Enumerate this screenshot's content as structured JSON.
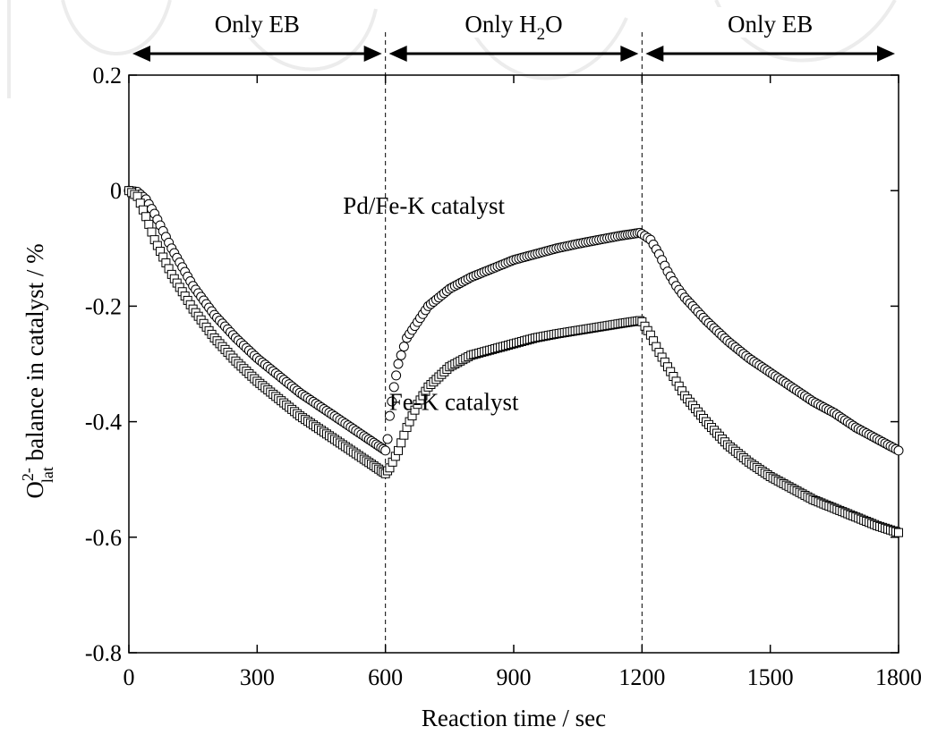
{
  "chart_data": {
    "type": "scatter",
    "title": "",
    "xlabel": "Reaction time / sec",
    "ylabel": {
      "main": "O",
      "sup": "2-",
      "sub": "lat",
      "rest": " balance in catalyst / %"
    },
    "xlim": [
      0,
      1800
    ],
    "ylim": [
      -0.8,
      0.2
    ],
    "x_ticks": [
      "0",
      "300",
      "600",
      "900",
      "1200",
      "1500",
      "1800"
    ],
    "y_ticks": [
      "0.2",
      "0",
      "-0.2",
      "-0.4",
      "-0.6",
      "-0.8"
    ],
    "x_tick_values": [
      0,
      300,
      600,
      900,
      1200,
      1500,
      1800
    ],
    "y_tick_values": [
      0.2,
      0,
      -0.2,
      -0.4,
      -0.6,
      -0.8
    ],
    "grid": false,
    "legend": "none",
    "phase_boundaries": [
      600,
      1200
    ],
    "phases": [
      {
        "label": "Only EB",
        "start": 0,
        "end": 600
      },
      {
        "label_main": "Only H",
        "label_sub": "2",
        "label_tail": "O",
        "start": 600,
        "end": 1200
      },
      {
        "label": "Only EB",
        "start": 1200,
        "end": 1800
      }
    ],
    "series": [
      {
        "name": "Pd/Fe-K catalyst",
        "marker": "circle",
        "label_at": [
          690,
          -0.04
        ],
        "points": [
          [
            0,
            0.0
          ],
          [
            20,
            -0.002
          ],
          [
            40,
            -0.015
          ],
          [
            60,
            -0.04
          ],
          [
            80,
            -0.07
          ],
          [
            100,
            -0.1
          ],
          [
            150,
            -0.165
          ],
          [
            200,
            -0.215
          ],
          [
            250,
            -0.255
          ],
          [
            300,
            -0.29
          ],
          [
            350,
            -0.32
          ],
          [
            400,
            -0.35
          ],
          [
            450,
            -0.375
          ],
          [
            500,
            -0.4
          ],
          [
            550,
            -0.425
          ],
          [
            590,
            -0.445
          ],
          [
            600,
            -0.45
          ],
          [
            605,
            -0.43
          ],
          [
            610,
            -0.39
          ],
          [
            620,
            -0.34
          ],
          [
            630,
            -0.3
          ],
          [
            650,
            -0.255
          ],
          [
            700,
            -0.2
          ],
          [
            750,
            -0.17
          ],
          [
            800,
            -0.15
          ],
          [
            850,
            -0.135
          ],
          [
            900,
            -0.12
          ],
          [
            950,
            -0.11
          ],
          [
            1000,
            -0.1
          ],
          [
            1050,
            -0.092
          ],
          [
            1100,
            -0.085
          ],
          [
            1150,
            -0.078
          ],
          [
            1195,
            -0.073
          ],
          [
            1200,
            -0.075
          ],
          [
            1220,
            -0.085
          ],
          [
            1240,
            -0.11
          ],
          [
            1260,
            -0.14
          ],
          [
            1280,
            -0.165
          ],
          [
            1300,
            -0.185
          ],
          [
            1350,
            -0.225
          ],
          [
            1400,
            -0.26
          ],
          [
            1450,
            -0.29
          ],
          [
            1500,
            -0.315
          ],
          [
            1550,
            -0.34
          ],
          [
            1600,
            -0.365
          ],
          [
            1650,
            -0.385
          ],
          [
            1700,
            -0.41
          ],
          [
            1750,
            -0.43
          ],
          [
            1800,
            -0.45
          ]
        ]
      },
      {
        "name": "Fe-K catalyst",
        "marker": "square",
        "label_at": [
          760,
          -0.38
        ],
        "points": [
          [
            0,
            0.0
          ],
          [
            20,
            -0.01
          ],
          [
            40,
            -0.045
          ],
          [
            60,
            -0.085
          ],
          [
            80,
            -0.115
          ],
          [
            100,
            -0.145
          ],
          [
            150,
            -0.205
          ],
          [
            200,
            -0.255
          ],
          [
            250,
            -0.295
          ],
          [
            300,
            -0.33
          ],
          [
            350,
            -0.36
          ],
          [
            400,
            -0.39
          ],
          [
            450,
            -0.415
          ],
          [
            500,
            -0.44
          ],
          [
            550,
            -0.465
          ],
          [
            590,
            -0.485
          ],
          [
            600,
            -0.49
          ],
          [
            610,
            -0.48
          ],
          [
            630,
            -0.45
          ],
          [
            650,
            -0.41
          ],
          [
            675,
            -0.37
          ],
          [
            700,
            -0.34
          ],
          [
            750,
            -0.305
          ],
          [
            800,
            -0.285
          ],
          [
            850,
            -0.275
          ],
          [
            900,
            -0.265
          ],
          [
            950,
            -0.255
          ],
          [
            1000,
            -0.248
          ],
          [
            1050,
            -0.242
          ],
          [
            1100,
            -0.236
          ],
          [
            1150,
            -0.23
          ],
          [
            1195,
            -0.225
          ],
          [
            1200,
            -0.227
          ],
          [
            1220,
            -0.25
          ],
          [
            1240,
            -0.28
          ],
          [
            1260,
            -0.305
          ],
          [
            1280,
            -0.33
          ],
          [
            1300,
            -0.355
          ],
          [
            1350,
            -0.4
          ],
          [
            1400,
            -0.44
          ],
          [
            1450,
            -0.47
          ],
          [
            1500,
            -0.495
          ],
          [
            1550,
            -0.515
          ],
          [
            1600,
            -0.535
          ],
          [
            1650,
            -0.55
          ],
          [
            1700,
            -0.565
          ],
          [
            1750,
            -0.58
          ],
          [
            1800,
            -0.592
          ]
        ]
      }
    ]
  }
}
